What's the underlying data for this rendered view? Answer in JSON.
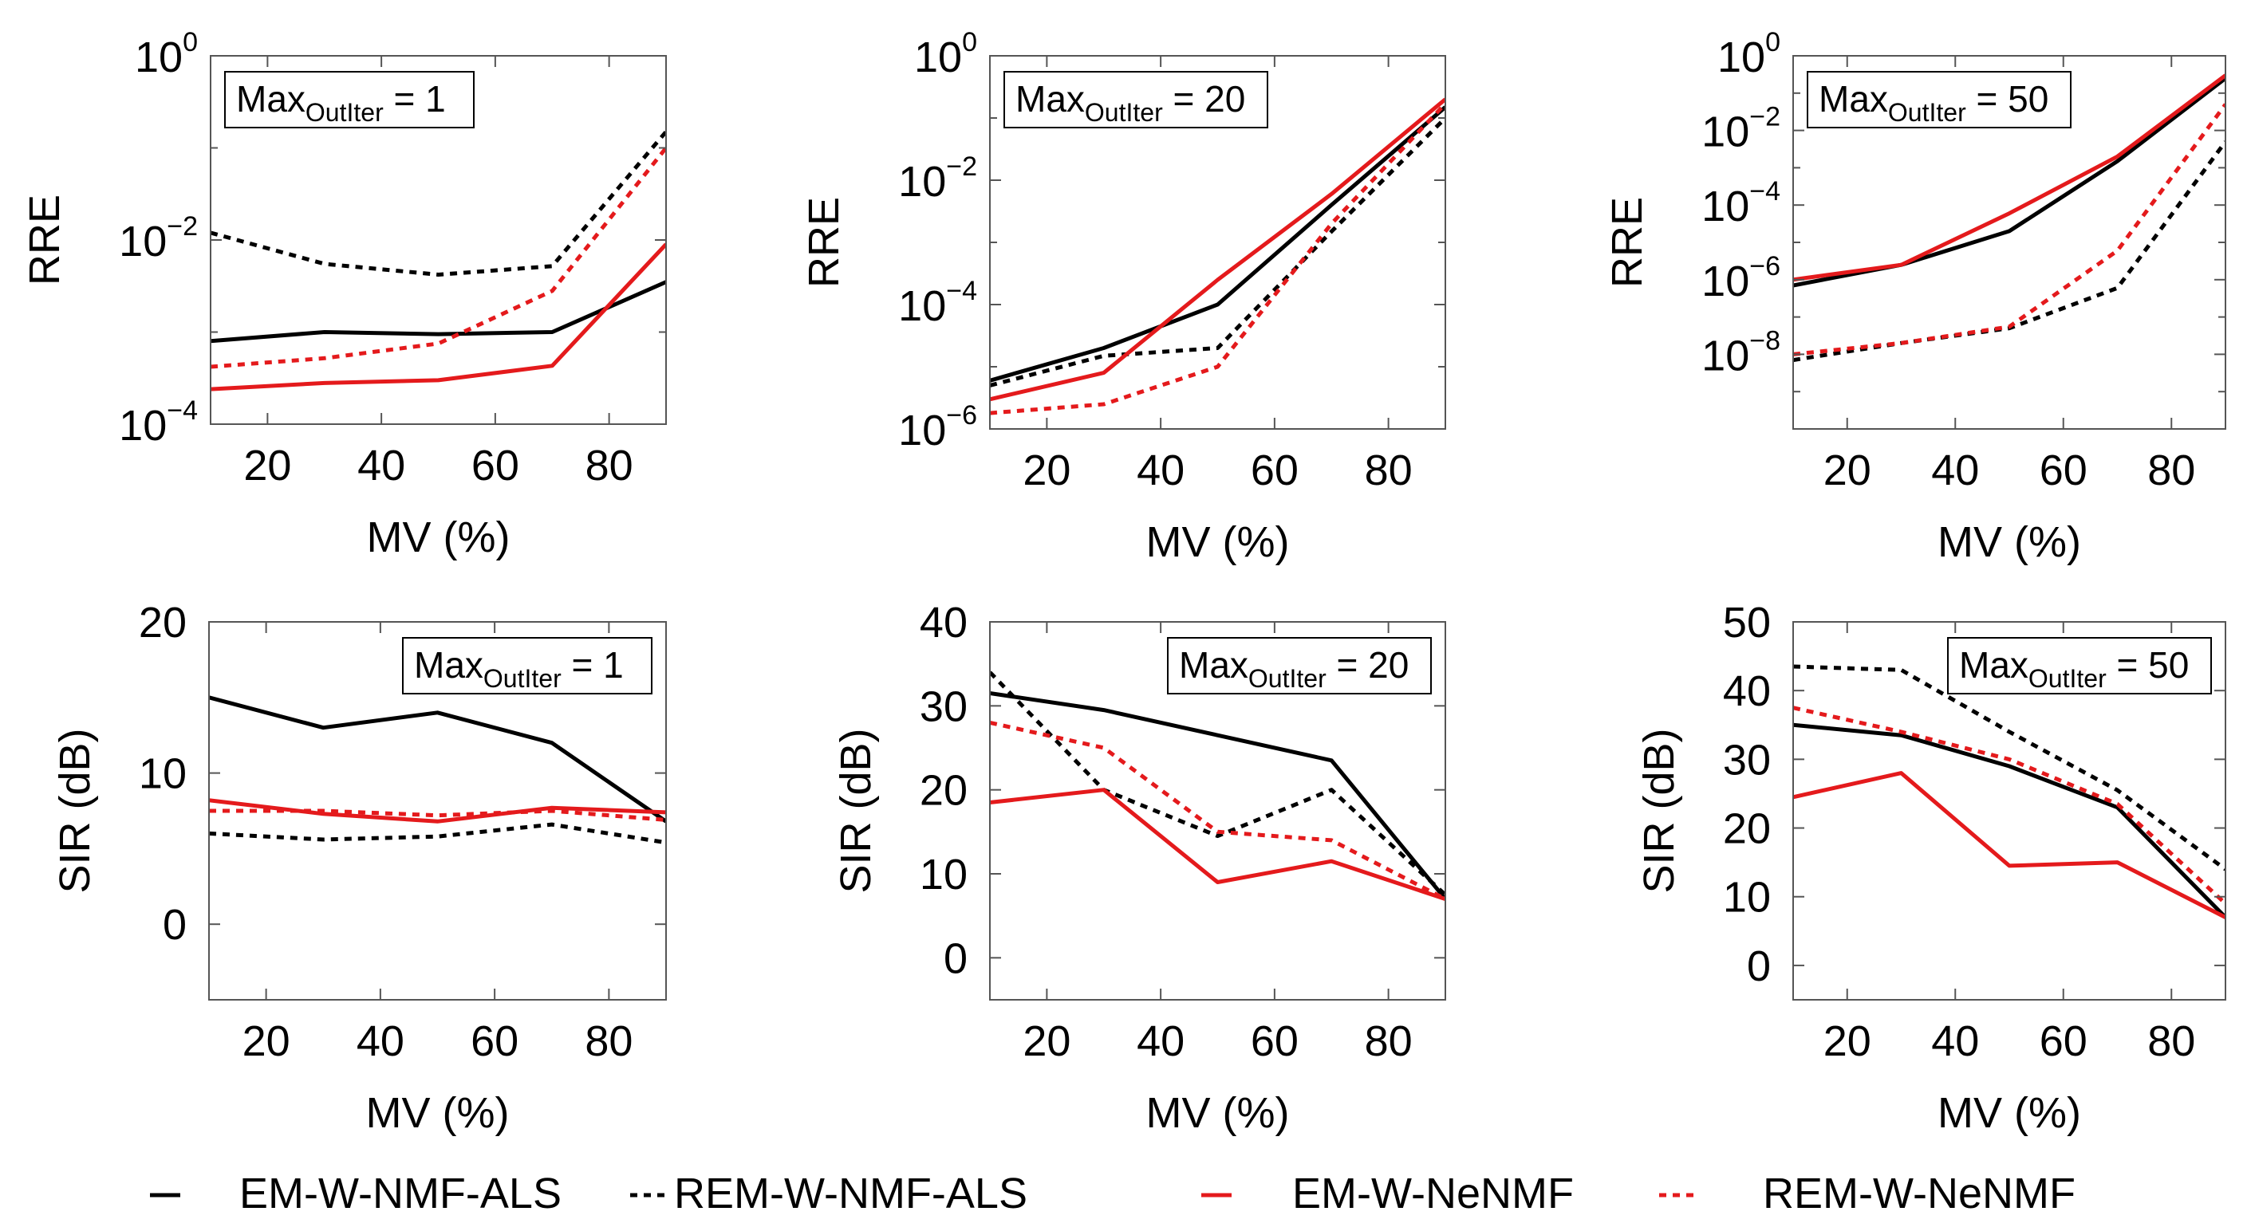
{
  "series_styles": [
    {
      "name": "EM-W-NMF-ALS",
      "color": "#000000",
      "dashed": false
    },
    {
      "name": "REM-W-NMF-ALS",
      "color": "#000000",
      "dashed": true
    },
    {
      "name": "EM-W-NeNMF",
      "color": "#e41a1c",
      "dashed": false
    },
    {
      "name": "REM-W-NeNMF",
      "color": "#e41a1c",
      "dashed": true
    }
  ],
  "legend": {
    "placement": "bottom",
    "entries": [
      {
        "label": "EM-W-NMF-ALS",
        "symbol": "—"
      },
      {
        "label": "REM-W-NMF-ALS",
        "symbol": "···"
      },
      {
        "label": "EM-W-NeNMF",
        "symbol": "—"
      },
      {
        "label": "REM-W-NeNMF",
        "symbol": "···"
      }
    ]
  },
  "chart_data": [
    {
      "type": "line",
      "xlabel": "MV (%)",
      "ylabel": "RRE",
      "yscale": "log",
      "box": {
        "base": "Max",
        "sub": "OutIter",
        "rhs": "= 1",
        "placement": "top-left"
      },
      "xlim": [
        10,
        90
      ],
      "ylim_exp": [
        -4,
        0
      ],
      "xticks": [
        20,
        40,
        60,
        80
      ],
      "ytick_exps": [
        -4,
        -2,
        0
      ],
      "x": [
        10,
        30,
        50,
        70,
        90
      ],
      "series": [
        {
          "name": "EM-W-NMF-ALS",
          "values": [
            0.0008,
            0.001,
            0.00095,
            0.001,
            0.0035
          ]
        },
        {
          "name": "REM-W-NMF-ALS",
          "values": [
            0.012,
            0.0055,
            0.0042,
            0.0052,
            0.15
          ]
        },
        {
          "name": "EM-W-NeNMF",
          "values": [
            0.00024,
            0.00028,
            0.0003,
            0.00043,
            0.009
          ]
        },
        {
          "name": "REM-W-NeNMF",
          "values": [
            0.00042,
            0.00052,
            0.00075,
            0.0028,
            0.1
          ]
        }
      ]
    },
    {
      "type": "line",
      "xlabel": "MV (%)",
      "ylabel": "RRE",
      "yscale": "log",
      "box": {
        "base": "Max",
        "sub": "OutIter",
        "rhs": "= 20",
        "placement": "top-left"
      },
      "xlim": [
        10,
        90
      ],
      "ylim_exp": [
        -6,
        0
      ],
      "xticks": [
        20,
        40,
        60,
        80
      ],
      "ytick_exps": [
        -6,
        -4,
        -2,
        0
      ],
      "x": [
        10,
        30,
        50,
        70,
        90
      ],
      "series": [
        {
          "name": "EM-W-NMF-ALS",
          "values": [
            6e-06,
            2e-05,
            0.0001,
            0.004,
            0.15
          ]
        },
        {
          "name": "REM-W-NMF-ALS",
          "values": [
            5e-06,
            1.5e-05,
            2e-05,
            0.0015,
            0.1
          ]
        },
        {
          "name": "EM-W-NeNMF",
          "values": [
            3e-06,
            8e-06,
            0.00025,
            0.006,
            0.2
          ]
        },
        {
          "name": "REM-W-NeNMF",
          "values": [
            1.8e-06,
            2.5e-06,
            1e-05,
            0.002,
            0.17
          ]
        }
      ]
    },
    {
      "type": "line",
      "xlabel": "MV (%)",
      "ylabel": "RRE",
      "yscale": "log",
      "box": {
        "base": "Max",
        "sub": "OutIter",
        "rhs": "= 50",
        "placement": "top-left"
      },
      "xlim": [
        10,
        90
      ],
      "ylim_exp": [
        -10,
        0
      ],
      "xticks": [
        20,
        40,
        60,
        80
      ],
      "ytick_exps": [
        -8,
        -6,
        -4,
        -2,
        0
      ],
      "x": [
        10,
        30,
        50,
        70,
        90
      ],
      "series": [
        {
          "name": "EM-W-NMF-ALS",
          "values": [
            7e-07,
            2.5e-06,
            2e-05,
            0.0015,
            0.25
          ]
        },
        {
          "name": "REM-W-NMF-ALS",
          "values": [
            7e-09,
            2e-08,
            5e-08,
            6e-07,
            0.005
          ]
        },
        {
          "name": "EM-W-NeNMF",
          "values": [
            1e-06,
            2.5e-06,
            6e-05,
            0.002,
            0.3
          ]
        },
        {
          "name": "REM-W-NeNMF",
          "values": [
            1e-08,
            2e-08,
            5.5e-08,
            6e-06,
            0.05
          ]
        }
      ]
    },
    {
      "type": "line",
      "xlabel": "MV (%)",
      "ylabel": "SIR (dB)",
      "yscale": "linear",
      "box": {
        "base": "Max",
        "sub": "OutIter",
        "rhs": "= 1",
        "placement": "top-right"
      },
      "xlim": [
        10,
        90
      ],
      "ylim": [
        -5,
        20
      ],
      "xticks": [
        20,
        40,
        60,
        80
      ],
      "yticks": [
        0,
        10,
        20
      ],
      "x": [
        10,
        30,
        50,
        70,
        90
      ],
      "series": [
        {
          "name": "EM-W-NMF-ALS",
          "values": [
            15,
            13,
            14,
            12,
            6.8
          ]
        },
        {
          "name": "REM-W-NMF-ALS",
          "values": [
            6,
            5.6,
            5.8,
            6.6,
            5.4
          ]
        },
        {
          "name": "EM-W-NeNMF",
          "values": [
            8.2,
            7.3,
            6.8,
            7.7,
            7.4
          ]
        },
        {
          "name": "REM-W-NeNMF",
          "values": [
            7.5,
            7.5,
            7.2,
            7.5,
            6.9
          ]
        }
      ]
    },
    {
      "type": "line",
      "xlabel": "MV (%)",
      "ylabel": "SIR (dB)",
      "yscale": "linear",
      "box": {
        "base": "Max",
        "sub": "OutIter",
        "rhs": "= 20",
        "placement": "top-right"
      },
      "xlim": [
        10,
        90
      ],
      "ylim": [
        -5,
        40
      ],
      "xticks": [
        20,
        40,
        60,
        80
      ],
      "yticks": [
        0,
        10,
        20,
        30,
        40
      ],
      "x": [
        10,
        30,
        50,
        70,
        90
      ],
      "series": [
        {
          "name": "EM-W-NMF-ALS",
          "values": [
            31.5,
            29.5,
            26.5,
            23.5,
            7
          ]
        },
        {
          "name": "REM-W-NMF-ALS",
          "values": [
            34,
            20,
            14.5,
            20,
            7.5
          ]
        },
        {
          "name": "EM-W-NeNMF",
          "values": [
            18.5,
            20,
            9,
            11.5,
            7
          ]
        },
        {
          "name": "REM-W-NeNMF",
          "values": [
            28,
            25,
            15,
            14,
            7
          ]
        }
      ]
    },
    {
      "type": "line",
      "xlabel": "MV (%)",
      "ylabel": "SIR (dB)",
      "yscale": "linear",
      "box": {
        "base": "Max",
        "sub": "OutIter",
        "rhs": "= 50",
        "placement": "top-right"
      },
      "xlim": [
        10,
        90
      ],
      "ylim": [
        -5,
        50
      ],
      "xticks": [
        20,
        40,
        60,
        80
      ],
      "yticks": [
        0,
        10,
        20,
        30,
        40,
        50
      ],
      "x": [
        10,
        30,
        50,
        70,
        90
      ],
      "series": [
        {
          "name": "EM-W-NMF-ALS",
          "values": [
            35,
            33.5,
            29,
            23,
            7
          ]
        },
        {
          "name": "REM-W-NMF-ALS",
          "values": [
            43.5,
            43,
            34,
            25.5,
            14
          ]
        },
        {
          "name": "EM-W-NeNMF",
          "values": [
            24.5,
            28,
            14.5,
            15,
            7
          ]
        },
        {
          "name": "REM-W-NeNMF",
          "values": [
            37.5,
            34,
            30,
            23.5,
            9
          ]
        }
      ]
    }
  ]
}
